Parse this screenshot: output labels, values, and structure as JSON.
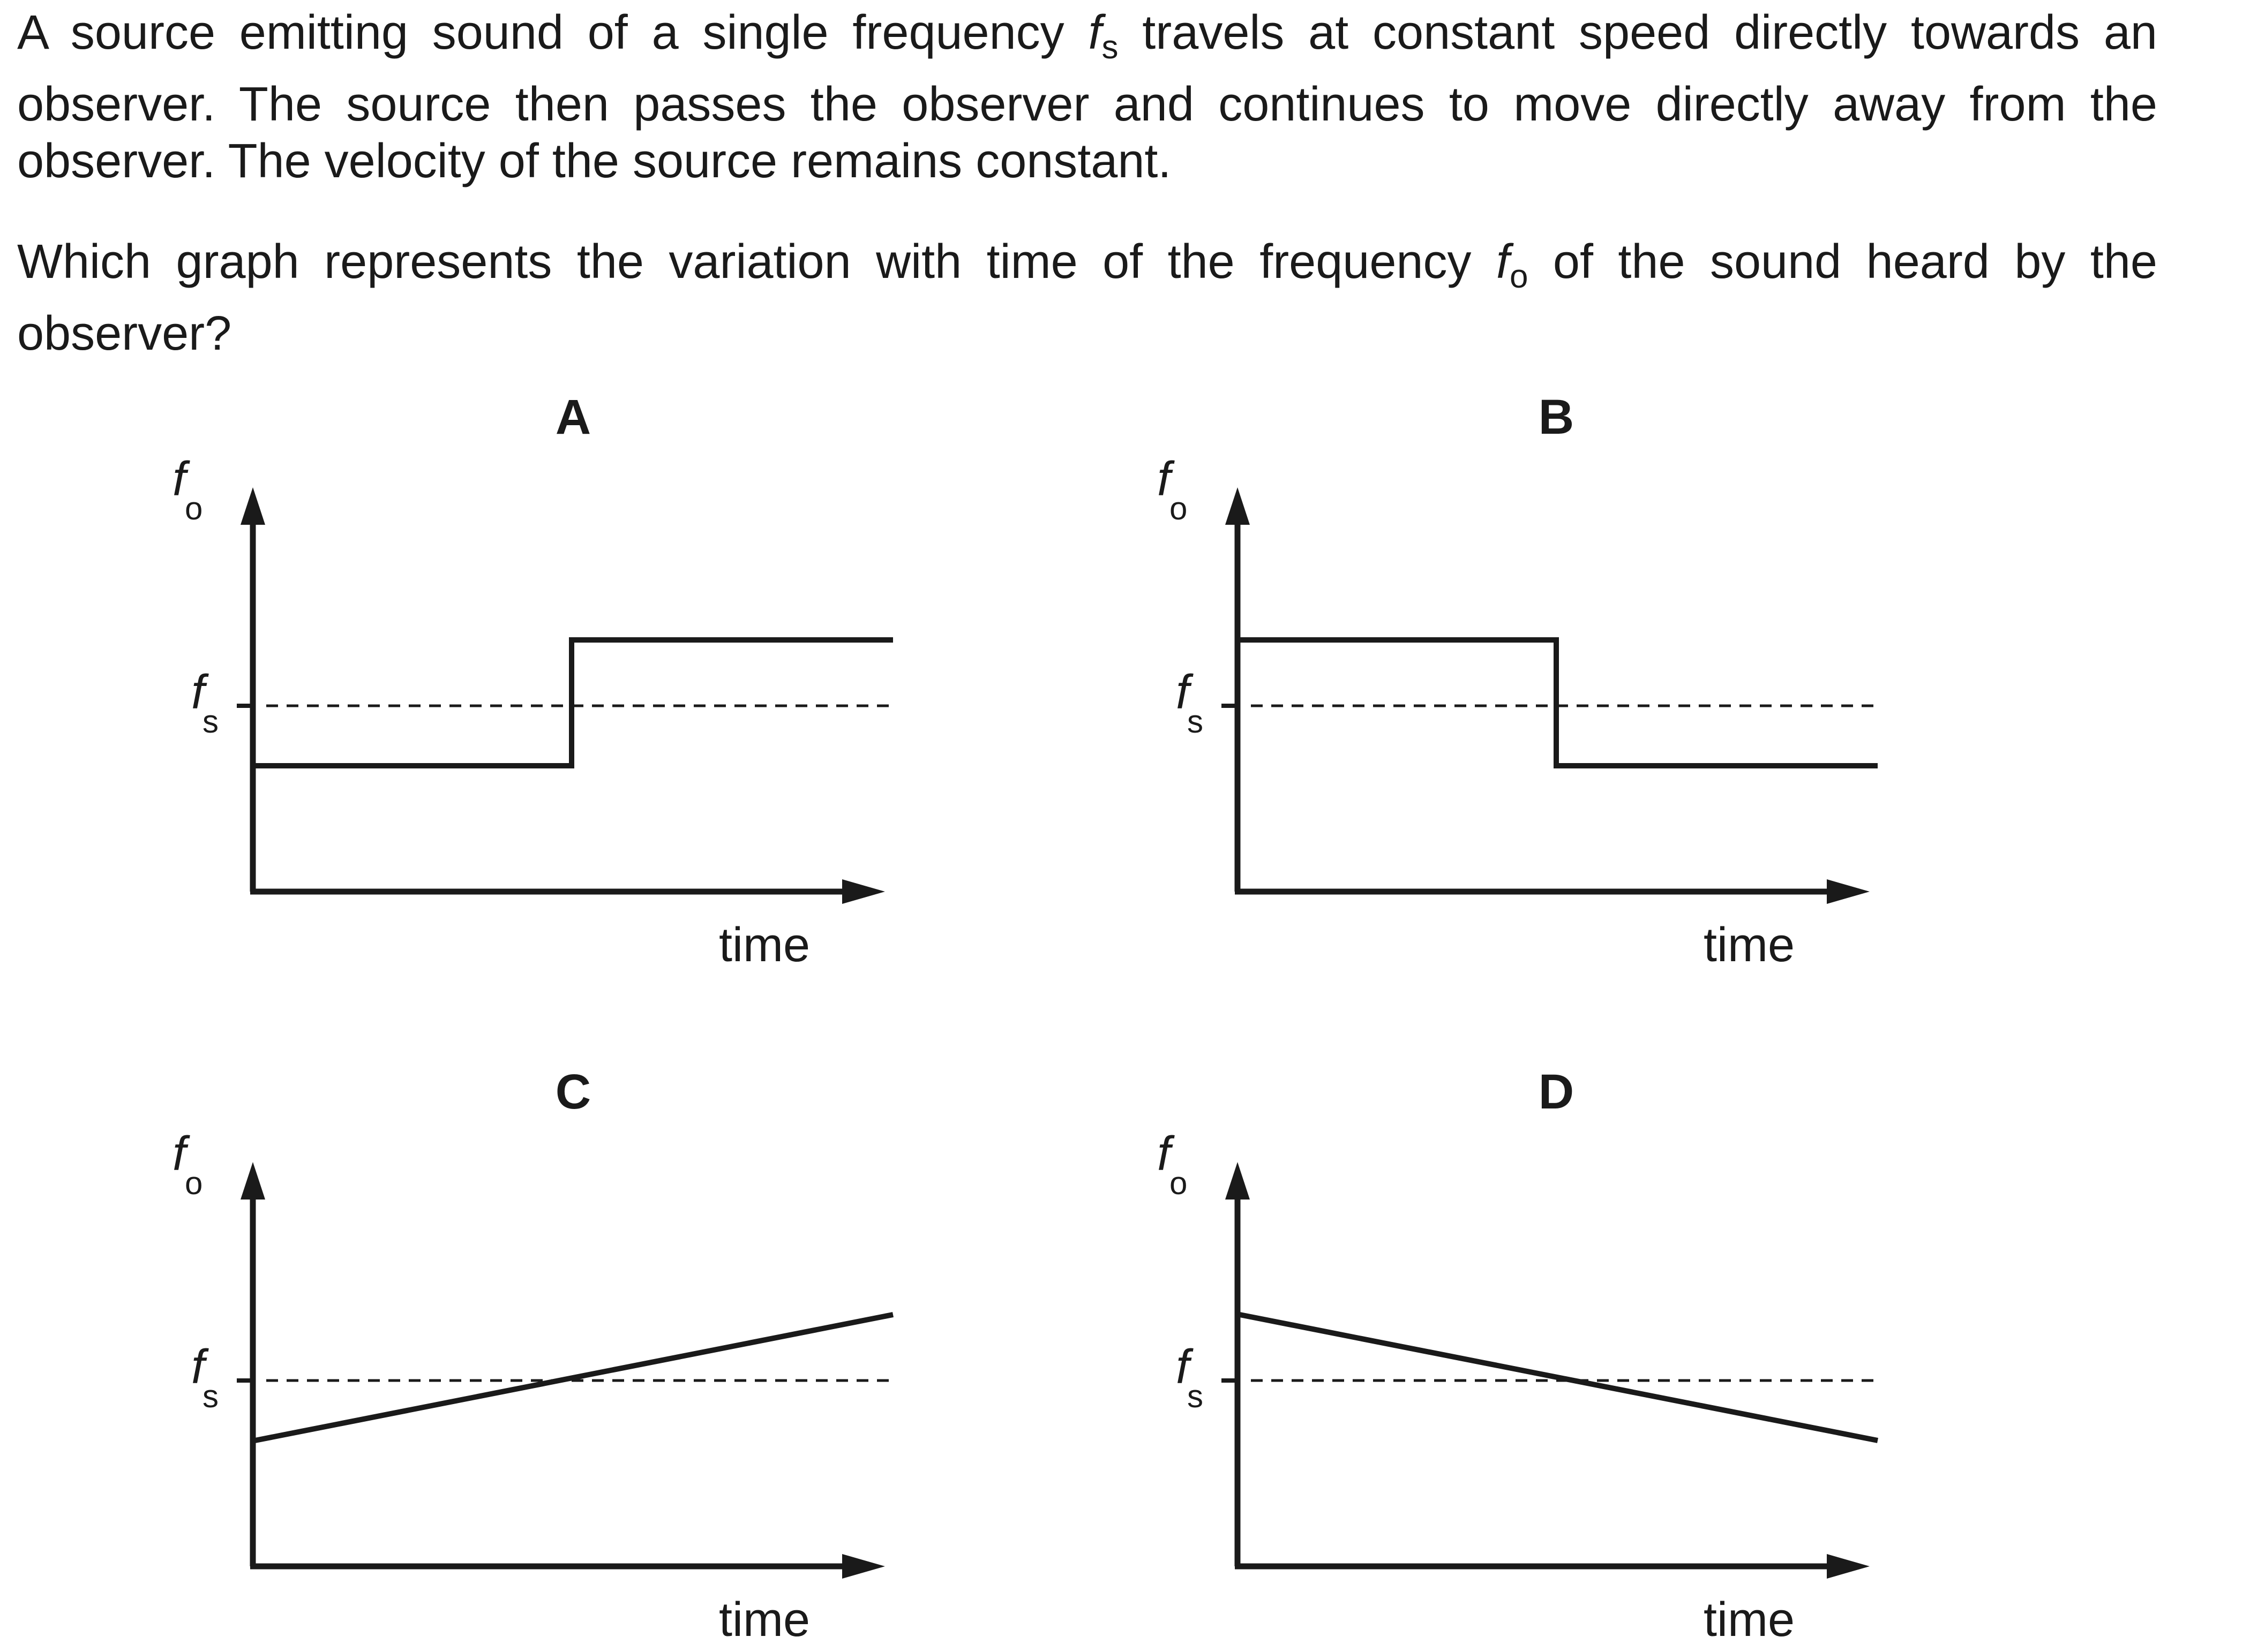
{
  "question": {
    "para1": {
      "line1_a": "A source emitting sound of a single frequency",
      "line1_sym": "f",
      "line1_sub": "s",
      "line1_b": "travels at constant speed directly towards an",
      "line2": "observer. The source then passes the observer and continues to move directly away from the",
      "line3": "observer. The velocity of the source remains constant."
    },
    "para2": {
      "line1_a": "Which graph represents the variation with time of the frequency",
      "line1_sym": "f",
      "line1_sub": "o",
      "line1_b": "of the sound heard by the",
      "line2": "observer?"
    }
  },
  "axis_labels": {
    "y_symbol": "f",
    "y_sub": "o",
    "ref_symbol": "f",
    "ref_sub": "s",
    "x": "time"
  },
  "graphs": [
    {
      "option": "A",
      "shape": "step",
      "before": "below",
      "after": "above"
    },
    {
      "option": "B",
      "shape": "step",
      "before": "above",
      "after": "below"
    },
    {
      "option": "C",
      "shape": "linear",
      "start": "below",
      "end": "above"
    },
    {
      "option": "D",
      "shape": "linear",
      "start": "above",
      "end": "below"
    }
  ],
  "colors": {
    "ink": "#1a1a1a"
  }
}
